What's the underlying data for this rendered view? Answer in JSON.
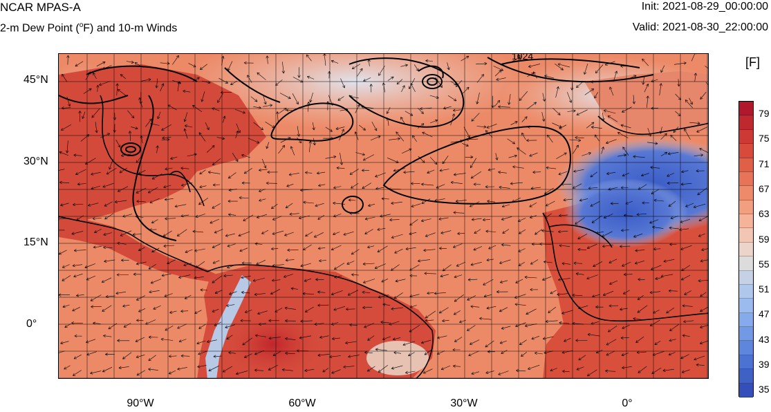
{
  "header": {
    "model_name": "NCAR MPAS-A",
    "field_title": "2-m Dew Point (",
    "field_degree": "o",
    "field_title_rest": "F) and 10-m Winds",
    "init_time": "Init: 2021-08-29_00:00:00",
    "valid_time": "Valid: 2021-08-30_22:00:00"
  },
  "map": {
    "lat_labels": [
      "45°N",
      "30°N",
      "15°N",
      "0°"
    ],
    "lon_labels": [
      "90°W",
      "60°W",
      "30°W",
      "0°"
    ],
    "contour_label": "1024",
    "land_color": "#d8503c",
    "ocean_color": "#ec8a68"
  },
  "colorbar": {
    "units": "[F]",
    "labels": [
      "79",
      "75",
      "71",
      "67",
      "63",
      "59",
      "55",
      "51",
      "47",
      "43",
      "39",
      "35"
    ],
    "colors": [
      "#b2182b",
      "#c0282f",
      "#cd3a36",
      "#d84b3c",
      "#e05f47",
      "#e77456",
      "#ee8a6a",
      "#f29f80",
      "#f5b399",
      "#f3c6b3",
      "#ecd4cb",
      "#dcdcdc",
      "#c5d1e4",
      "#b0c7ec",
      "#9bbaee",
      "#86abec",
      "#7199e6",
      "#5e86dc",
      "#4d73d2",
      "#3e61c6",
      "#344fba"
    ]
  }
}
